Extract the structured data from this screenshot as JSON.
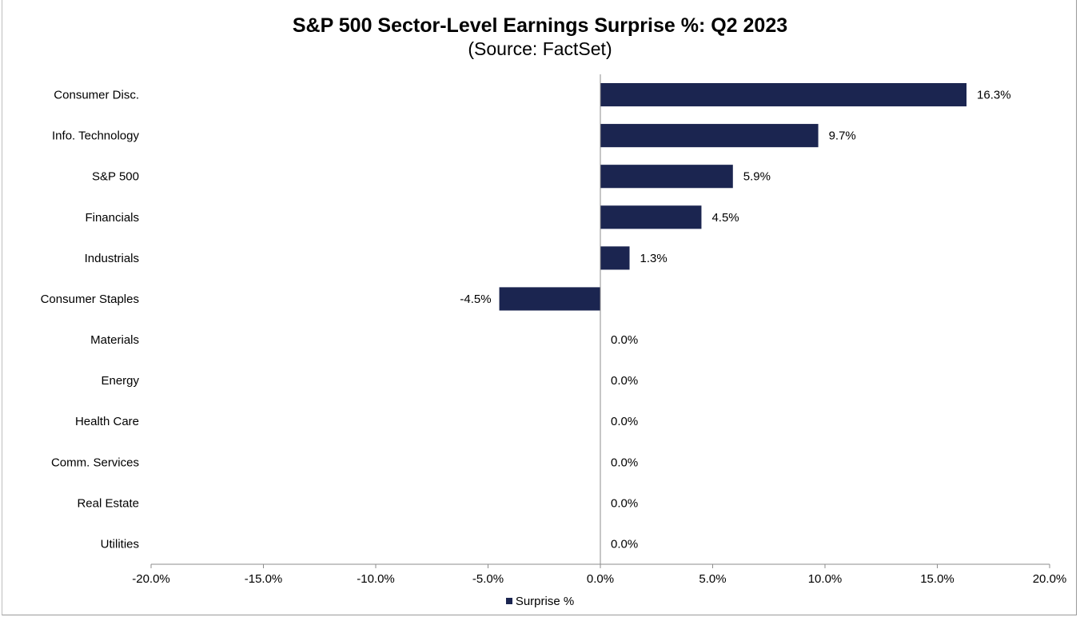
{
  "chart_data": {
    "type": "bar",
    "orientation": "horizontal",
    "title": "S&P 500 Sector-Level Earnings Surprise %: Q2 2023",
    "subtitle": "(Source: FactSet)",
    "categories": [
      "Consumer Disc.",
      "Info. Technology",
      "S&P 500",
      "Financials",
      "Industrials",
      "Consumer Staples",
      "Materials",
      "Energy",
      "Health Care",
      "Comm. Services",
      "Real Estate",
      "Utilities"
    ],
    "series": [
      {
        "name": "Surprise %",
        "values": [
          16.3,
          9.7,
          5.9,
          4.5,
          1.3,
          -4.5,
          0.0,
          0.0,
          0.0,
          0.0,
          0.0,
          0.0
        ],
        "data_labels": [
          "16.3%",
          "9.7%",
          "5.9%",
          "4.5%",
          "1.3%",
          "-4.5%",
          "0.0%",
          "0.0%",
          "0.0%",
          "0.0%",
          "0.0%",
          "0.0%"
        ]
      }
    ],
    "xlim": [
      -20,
      20
    ],
    "xticks": [
      -20,
      -15,
      -10,
      -5,
      0,
      5,
      10,
      15,
      20
    ],
    "xtick_labels": [
      "-20.0%",
      "-15.0%",
      "-10.0%",
      "-5.0%",
      "0.0%",
      "5.0%",
      "10.0%",
      "15.0%",
      "20.0%"
    ],
    "grid": false,
    "legend_position": "bottom-center",
    "colors": {
      "bar": "#1b2550",
      "axis": "#8c8c8c"
    }
  }
}
